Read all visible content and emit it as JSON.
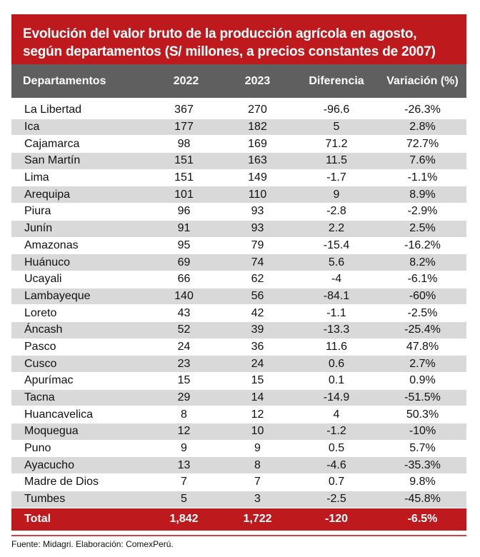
{
  "title": "Evolución del valor bruto de la producción agrícola en agosto, según departamentos (S/ millones, a precios constantes de 2007)",
  "title_lines": [
    "Evolución del valor bruto de la producción agrícola en agosto,",
    "según departamentos (S/ millones, a precios constantes de 2007)"
  ],
  "colors": {
    "accent_red": "#be1a1d",
    "header_gray": "#5f5f5f",
    "stripe_gray": "#d9d9d9"
  },
  "columns": [
    "Departamentos",
    "2022",
    "2023",
    "Diferencia",
    "Variación (%)"
  ],
  "rows": [
    [
      "La Libertad",
      "367",
      "270",
      "-96.6",
      "-26.3%"
    ],
    [
      "Ica",
      "177",
      "182",
      "5",
      "2.8%"
    ],
    [
      "Cajamarca",
      "98",
      "169",
      "71.2",
      "72.7%"
    ],
    [
      "San Martín",
      "151",
      "163",
      "11.5",
      "7.6%"
    ],
    [
      "Lima",
      "151",
      "149",
      "-1.7",
      "-1.1%"
    ],
    [
      "Arequipa",
      "101",
      "110",
      "9",
      "8.9%"
    ],
    [
      "Piura",
      "96",
      "93",
      "-2.8",
      "-2.9%"
    ],
    [
      "Junín",
      "91",
      "93",
      "2.2",
      "2.5%"
    ],
    [
      "Amazonas",
      "95",
      "79",
      "-15.4",
      "-16.2%"
    ],
    [
      "Huánuco",
      "69",
      "74",
      "5.6",
      "8.2%"
    ],
    [
      "Ucayali",
      "66",
      "62",
      "-4",
      "-6.1%"
    ],
    [
      "Lambayeque",
      "140",
      "56",
      "-84.1",
      "-60%"
    ],
    [
      "Loreto",
      "43",
      "42",
      "-1.1",
      "-2.5%"
    ],
    [
      "Áncash",
      "52",
      "39",
      "-13.3",
      "-25.4%"
    ],
    [
      "Pasco",
      "24",
      "36",
      "11.6",
      "47.8%"
    ],
    [
      "Cusco",
      "23",
      "24",
      "0.6",
      "2.7%"
    ],
    [
      "Apurímac",
      "15",
      "15",
      "0.1",
      "0.9%"
    ],
    [
      "Tacna",
      "29",
      "14",
      "-14.9",
      "-51.5%"
    ],
    [
      "Huancavelica",
      "8",
      "12",
      "4",
      "50.3%"
    ],
    [
      "Moquegua",
      "12",
      "10",
      "-1.2",
      "-10%"
    ],
    [
      "Puno",
      "9",
      "9",
      "0.5",
      "5.7%"
    ],
    [
      "Ayacucho",
      "13",
      "8",
      "-4.6",
      "-35.3%"
    ],
    [
      "Madre de Dios",
      "7",
      "7",
      "0.7",
      "9.8%"
    ],
    [
      "Tumbes",
      "5",
      "3",
      "-2.5",
      "-45.8%"
    ]
  ],
  "total": [
    "Total",
    "1,842",
    "1,722",
    "-120",
    "-6.5%"
  ],
  "source": "Fuente: Midagri. Elaboración: ComexPerú."
}
